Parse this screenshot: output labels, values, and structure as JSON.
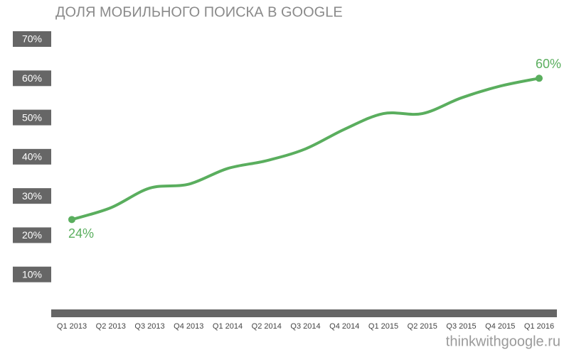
{
  "chart_data": {
    "type": "line",
    "title": "ДОЛЯ МОБИЛЬНОГО ПОИСКА В GOOGLE",
    "source": "thinkwithgoogle.ru",
    "categories": [
      "Q1 2013",
      "Q2 2013",
      "Q3 2013",
      "Q4 2013",
      "Q1 2014",
      "Q2 2014",
      "Q3 2014",
      "Q4 2014",
      "Q1 2015",
      "Q2 2015",
      "Q3 2015",
      "Q4 2015",
      "Q1 2016"
    ],
    "values": [
      24,
      27,
      32,
      33,
      37,
      39,
      42,
      47,
      51,
      51,
      55,
      58,
      60
    ],
    "value_labels": [
      "24%",
      null,
      null,
      null,
      null,
      null,
      null,
      null,
      null,
      null,
      null,
      null,
      "60%"
    ],
    "color": "#5aae5e",
    "ylim": [
      0,
      70
    ],
    "yticks": [
      {
        "value": 10,
        "label": "10%"
      },
      {
        "value": 20,
        "label": "20%"
      },
      {
        "value": 30,
        "label": "30%"
      },
      {
        "value": 40,
        "label": "40%"
      },
      {
        "value": 50,
        "label": "50%"
      },
      {
        "value": 60,
        "label": "60%"
      },
      {
        "value": 70,
        "label": "70%"
      }
    ],
    "grid": false
  }
}
